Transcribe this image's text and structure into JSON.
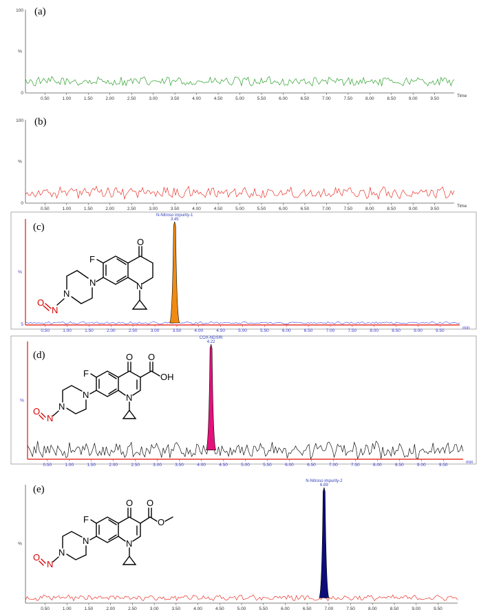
{
  "panel_labels": [
    "(a)",
    "(b)",
    "(c)",
    "(d)",
    "(e)"
  ],
  "structure_labels": {
    "fluoro": "F",
    "oxo": "O",
    "ring_n": "N",
    "piperazine_n": "N",
    "nitroso_n": "N",
    "nitroso_o": "O",
    "acid_oh": "OH"
  },
  "colors": {
    "panel_a_trace": "#2ca02c",
    "panel_b_trace": "#e8332a",
    "panel_c_trace": "#5b5bf0",
    "panel_c_peak": "#f08a12",
    "panel_d_trace": "#111111",
    "panel_d_peak": "#e3127a",
    "panel_e_trace": "#e8332a",
    "panel_e_peak": "#0d0d7a",
    "red_axis": "#e8332a",
    "blue_tick": "#3a3ad0",
    "gray_tick": "#333333"
  },
  "chart_data": [
    {
      "type": "line",
      "panel": "(a)",
      "xlabel": "Time",
      "ylabel": "%",
      "ylim": [
        0,
        100
      ],
      "xlim": [
        0.05,
        9.95
      ],
      "x_ticks": [
        "0.50",
        "1.00",
        "1.50",
        "2.00",
        "2.50",
        "3.00",
        "3.50",
        "4.00",
        "4.50",
        "5.00",
        "5.50",
        "6.00",
        "6.50",
        "7.00",
        "7.50",
        "8.00",
        "8.50",
        "9.00",
        "9.50"
      ],
      "y_tick_labels": [
        "0",
        "100"
      ],
      "baseline": 14,
      "noise": 5,
      "peaks": []
    },
    {
      "type": "line",
      "panel": "(b)",
      "xlabel": "Time",
      "ylabel": "%",
      "ylim": [
        0,
        100
      ],
      "xlim": [
        0.05,
        9.95
      ],
      "x_ticks": [
        "0.50",
        "1.00",
        "1.50",
        "2.00",
        "2.50",
        "3.00",
        "3.50",
        "4.00",
        "4.50",
        "5.00",
        "5.50",
        "6.00",
        "6.50",
        "7.00",
        "7.50",
        "8.00",
        "8.50",
        "9.00",
        "9.50"
      ],
      "y_tick_labels": [
        "0",
        "100"
      ],
      "baseline": 13,
      "noise": 6,
      "peaks": []
    },
    {
      "type": "line",
      "panel": "(c)",
      "xlabel": "min",
      "ylabel": "%",
      "ylim": [
        0,
        100
      ],
      "xlim": [
        0.05,
        9.95
      ],
      "x_ticks": [
        "0.50",
        "1.00",
        "1.50",
        "2.00",
        "2.50",
        "3.00",
        "3.50",
        "4.00",
        "4.50",
        "5.00",
        "5.50",
        "6.00",
        "6.50",
        "7.00",
        "7.50",
        "8.00",
        "8.50",
        "9.00",
        "9.50"
      ],
      "y_tick_labels": [
        "5"
      ],
      "baseline": 2,
      "noise": 1,
      "peaks": [
        {
          "x": 3.45,
          "y": 100,
          "label": "N-Nitroso impurity-1",
          "rt": "3.45"
        }
      ]
    },
    {
      "type": "line",
      "panel": "(d)",
      "xlabel": "min",
      "ylabel": "%",
      "ylim": [
        0,
        100
      ],
      "xlim": [
        0.05,
        9.95
      ],
      "x_ticks": [
        "0.50",
        "1.00",
        "1.50",
        "2.00",
        "2.50",
        "3.00",
        "3.50",
        "4.00",
        "4.50",
        "5.00",
        "5.50",
        "6.00",
        "6.50",
        "7.00",
        "7.50",
        "8.00",
        "8.50",
        "9.00",
        "9.50"
      ],
      "y_tick_labels": [],
      "baseline": 8,
      "noise": 6,
      "peaks": [
        {
          "x": 4.22,
          "y": 100,
          "label": "COX-NDSRI",
          "rt": "4.22"
        }
      ]
    },
    {
      "type": "line",
      "panel": "(e)",
      "xlabel": "",
      "ylabel": "%",
      "ylim": [
        0,
        100
      ],
      "xlim": [
        0.05,
        9.95
      ],
      "x_ticks": [
        "0.50",
        "1.00",
        "1.50",
        "2.00",
        "2.50",
        "3.00",
        "3.50",
        "4.00",
        "4.50",
        "5.00",
        "5.50",
        "6.00",
        "6.50",
        "7.00",
        "7.50",
        "8.00",
        "8.50",
        "9.00",
        "9.50"
      ],
      "y_tick_labels": [],
      "baseline": 4,
      "noise": 2,
      "peaks": [
        {
          "x": 6.89,
          "y": 100,
          "label": "N-Nitroso impurity-2",
          "rt": "6.89"
        }
      ]
    }
  ]
}
